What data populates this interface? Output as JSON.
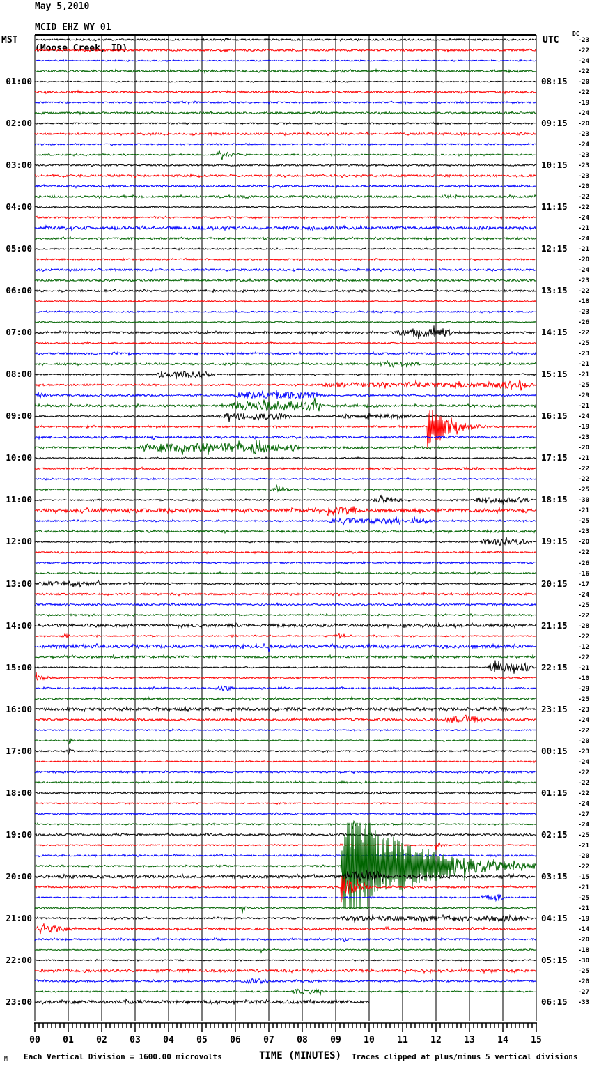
{
  "header": {
    "date": "May 5,2010",
    "station": "MCID EHZ WY 01",
    "location": "(Moose Creek, ID)"
  },
  "axes": {
    "left_label": "MST",
    "right_label": "UTC",
    "dc_label": "DC",
    "x_title": "TIME (MINUTES)",
    "x_tick_labels": [
      "00",
      "01",
      "02",
      "03",
      "04",
      "05",
      "06",
      "07",
      "08",
      "09",
      "10",
      "11",
      "12",
      "13",
      "14",
      "15"
    ]
  },
  "footer": {
    "corner_mark": "M",
    "scale_note": "Each Vertical Division = 1600.00 microvolts",
    "clip_note": "Traces clipped at plus/minus 5 vertical divisions"
  },
  "chart_data": {
    "type": "line",
    "subtype": "helicorder-seismogram",
    "minutes_per_line": 15,
    "x_range": [
      0,
      15
    ],
    "x_minor_ticks_per_minute": 8,
    "num_traces": 93,
    "last_trace_end_minute": 10,
    "grid": true,
    "grid_color": "#7b7b7b",
    "trace_color_cycle": [
      "#000000",
      "#ff0000",
      "#0000ff",
      "#006400"
    ],
    "clip_divisions": 5,
    "mst_hour_labels": [
      "01:00",
      "02:00",
      "03:00",
      "04:00",
      "05:00",
      "06:00",
      "07:00",
      "08:00",
      "09:00",
      "10:00",
      "11:00",
      "12:00",
      "13:00",
      "14:00",
      "15:00",
      "16:00",
      "17:00",
      "18:00",
      "19:00",
      "20:00",
      "21:00",
      "22:00",
      "23:00"
    ],
    "utc_hour_labels": [
      "08:15",
      "09:15",
      "10:15",
      "11:15",
      "12:15",
      "13:15",
      "14:15",
      "15:15",
      "16:15",
      "17:15",
      "18:15",
      "19:15",
      "20:15",
      "21:15",
      "22:15",
      "23:15",
      "00:15",
      "01:15",
      "02:15",
      "03:15",
      "04:15",
      "05:15",
      "06:15"
    ],
    "dc_offsets": [
      -23,
      -22,
      -24,
      -22,
      -20,
      -22,
      -19,
      -24,
      -20,
      -23,
      -24,
      -23,
      -23,
      -23,
      -20,
      -22,
      -22,
      -24,
      -21,
      -24,
      -21,
      -20,
      -24,
      -23,
      -22,
      -18,
      -23,
      -26,
      -22,
      -25,
      -23,
      -21,
      -21,
      -25,
      -29,
      -21,
      -24,
      -19,
      -23,
      -20,
      -21,
      -22,
      -22,
      -25,
      -30,
      -21,
      -25,
      -23,
      -20,
      -22,
      -26,
      -16,
      -17,
      -24,
      -25,
      -22,
      -28,
      -22,
      -12,
      -22,
      -21,
      -10,
      -29,
      -25,
      -23,
      -24,
      -22,
      -20,
      -23,
      -24,
      -22,
      -22,
      -22,
      -24,
      -27,
      -24,
      -25,
      -21,
      -20,
      -22,
      -15,
      -21,
      -25,
      -21,
      -19,
      -14,
      -20,
      -18,
      -30,
      -25,
      -20,
      -27,
      -33
    ],
    "events": [
      {
        "trace": 1,
        "start": 14.5,
        "end": 14.8,
        "amp": 3,
        "kind": "burst"
      },
      {
        "trace": 3,
        "start": 12.3,
        "end": 12.55,
        "amp": 2.5,
        "kind": "burst"
      },
      {
        "trace": 9,
        "start": 14.4,
        "end": 14.75,
        "amp": 4,
        "kind": "burst"
      },
      {
        "trace": 11,
        "start": 5.45,
        "end": 7.3,
        "amp": 5,
        "kind": "quake"
      },
      {
        "trace": 18,
        "start": 0,
        "end": 15,
        "amp": 2.1,
        "kind": "burst"
      },
      {
        "trace": 28,
        "start": 8.3,
        "end": 8.65,
        "amp": 6,
        "kind": "quake"
      },
      {
        "trace": 28,
        "start": 10.75,
        "end": 12.6,
        "amp": 6,
        "kind": "burst"
      },
      {
        "trace": 31,
        "start": 10.1,
        "end": 11.7,
        "amp": 3,
        "kind": "burst"
      },
      {
        "trace": 32,
        "start": 3.6,
        "end": 5.4,
        "amp": 4,
        "kind": "burst"
      },
      {
        "trace": 33,
        "start": 8.4,
        "end": 15,
        "amp": 3.5,
        "kind": "burst"
      },
      {
        "trace": 33,
        "start": 13.4,
        "end": 15,
        "amp": 5,
        "kind": "burst"
      },
      {
        "trace": 34,
        "start": 0.02,
        "end": 0.95,
        "amp": 7,
        "kind": "quake"
      },
      {
        "trace": 34,
        "start": 5.8,
        "end": 8.7,
        "amp": 4.5,
        "kind": "burst"
      },
      {
        "trace": 35,
        "start": 5.8,
        "end": 8.7,
        "amp": 7,
        "kind": "burst"
      },
      {
        "trace": 36,
        "start": 5.5,
        "end": 7.8,
        "amp": 5,
        "kind": "burst"
      },
      {
        "trace": 36,
        "start": 9.0,
        "end": 11.5,
        "amp": 3,
        "kind": "burst"
      },
      {
        "trace": 37,
        "start": 11.75,
        "end": 13.6,
        "amp": 34,
        "kind": "quake"
      },
      {
        "trace": 38,
        "start": 3.5,
        "end": 3.65,
        "amp": 5,
        "kind": "quake"
      },
      {
        "trace": 39,
        "start": 3.1,
        "end": 8.0,
        "amp": 6,
        "kind": "burst"
      },
      {
        "trace": 39,
        "start": 6.6,
        "end": 6.95,
        "amp": 13,
        "kind": "quake"
      },
      {
        "trace": 43,
        "start": 7.1,
        "end": 8.6,
        "amp": 5,
        "kind": "quake"
      },
      {
        "trace": 44,
        "start": 10.0,
        "end": 11.1,
        "amp": 4,
        "kind": "burst"
      },
      {
        "trace": 44,
        "start": 13.1,
        "end": 15,
        "amp": 4,
        "kind": "burst"
      },
      {
        "trace": 45,
        "start": 0,
        "end": 15,
        "amp": 2.3,
        "kind": "burst"
      },
      {
        "trace": 45,
        "start": 8.75,
        "end": 11.3,
        "amp": 10,
        "kind": "quake"
      },
      {
        "trace": 46,
        "start": 8.7,
        "end": 12.0,
        "amp": 3.5,
        "kind": "burst"
      },
      {
        "trace": 48,
        "start": 13.3,
        "end": 15,
        "amp": 4,
        "kind": "burst"
      },
      {
        "trace": 52,
        "start": 0.05,
        "end": 2.2,
        "amp": 3,
        "kind": "burst"
      },
      {
        "trace": 52,
        "start": 9.75,
        "end": 9.95,
        "amp": 3,
        "kind": "quake"
      },
      {
        "trace": 54,
        "start": 4.1,
        "end": 4.3,
        "amp": 5,
        "kind": "quake"
      },
      {
        "trace": 56,
        "start": 0,
        "end": 15,
        "amp": 2,
        "kind": "burst"
      },
      {
        "trace": 57,
        "start": 0.75,
        "end": 1.15,
        "amp": 4,
        "kind": "burst"
      },
      {
        "trace": 57,
        "start": 5.8,
        "end": 6.2,
        "amp": 3,
        "kind": "burst"
      },
      {
        "trace": 57,
        "start": 8.9,
        "end": 9.4,
        "amp": 3.5,
        "kind": "burst"
      },
      {
        "trace": 58,
        "start": 0,
        "end": 15,
        "amp": 2.2,
        "kind": "burst"
      },
      {
        "trace": 58,
        "start": 7.0,
        "end": 7.25,
        "amp": 8,
        "kind": "quake"
      },
      {
        "trace": 59,
        "start": 2.35,
        "end": 2.55,
        "amp": 6,
        "kind": "quake"
      },
      {
        "trace": 59,
        "start": 8.8,
        "end": 9.1,
        "amp": 3,
        "kind": "burst"
      },
      {
        "trace": 60,
        "start": 13.5,
        "end": 15,
        "amp": 6,
        "kind": "burst"
      },
      {
        "trace": 61,
        "start": 0.02,
        "end": 1.6,
        "amp": 5,
        "kind": "quake"
      },
      {
        "trace": 61,
        "start": 2.1,
        "end": 2.4,
        "amp": 3,
        "kind": "burst"
      },
      {
        "trace": 62,
        "start": 5.4,
        "end": 6.1,
        "amp": 3.5,
        "kind": "burst"
      },
      {
        "trace": 64,
        "start": 0,
        "end": 15,
        "amp": 2,
        "kind": "burst"
      },
      {
        "trace": 65,
        "start": 6.0,
        "end": 6.5,
        "amp": 3,
        "kind": "burst"
      },
      {
        "trace": 65,
        "start": 12.2,
        "end": 13.6,
        "amp": 4.5,
        "kind": "burst"
      },
      {
        "trace": 67,
        "start": 1.0,
        "end": 1.15,
        "amp": 8,
        "kind": "quake"
      },
      {
        "trace": 68,
        "start": 0.8,
        "end": 1.3,
        "amp": 3,
        "kind": "burst"
      },
      {
        "trace": 75,
        "start": 9.5,
        "end": 9.65,
        "amp": 10,
        "kind": "quake"
      },
      {
        "trace": 77,
        "start": 12.0,
        "end": 12.45,
        "amp": 8,
        "kind": "quake"
      },
      {
        "trace": 79,
        "start": 9.15,
        "end": 15,
        "amp": 95,
        "kind": "mainshock"
      },
      {
        "trace": 80,
        "start": 0,
        "end": 15,
        "amp": 2,
        "kind": "burst"
      },
      {
        "trace": 80,
        "start": 9.2,
        "end": 10.6,
        "amp": 7,
        "kind": "burst"
      },
      {
        "trace": 81,
        "start": 9.15,
        "end": 10.4,
        "amp": 22,
        "kind": "quake"
      },
      {
        "trace": 82,
        "start": 13.3,
        "end": 14.2,
        "amp": 4,
        "kind": "burst"
      },
      {
        "trace": 83,
        "start": 6.2,
        "end": 6.35,
        "amp": 9,
        "kind": "quake"
      },
      {
        "trace": 84,
        "start": 9.0,
        "end": 15,
        "amp": 3,
        "kind": "burst"
      },
      {
        "trace": 84,
        "start": 13.3,
        "end": 14.8,
        "amp": 4.5,
        "kind": "burst"
      },
      {
        "trace": 85,
        "start": 0.05,
        "end": 2.4,
        "amp": 10,
        "kind": "quake"
      },
      {
        "trace": 86,
        "start": 9.25,
        "end": 9.45,
        "amp": 6,
        "kind": "quake"
      },
      {
        "trace": 87,
        "start": 6.75,
        "end": 6.95,
        "amp": 5,
        "kind": "quake"
      },
      {
        "trace": 87,
        "start": 7.55,
        "end": 7.75,
        "amp": 3,
        "kind": "burst"
      },
      {
        "trace": 89,
        "start": 0,
        "end": 15,
        "amp": 1.8,
        "kind": "burst"
      },
      {
        "trace": 89,
        "start": 1.3,
        "end": 1.8,
        "amp": 3,
        "kind": "burst"
      },
      {
        "trace": 89,
        "start": 5.4,
        "end": 5.9,
        "amp": 3,
        "kind": "burst"
      },
      {
        "trace": 90,
        "start": 6.1,
        "end": 7.1,
        "amp": 3.5,
        "kind": "burst"
      },
      {
        "trace": 91,
        "start": 7.6,
        "end": 8.8,
        "amp": 4,
        "kind": "burst"
      },
      {
        "trace": 92,
        "start": 0,
        "end": 10,
        "amp": 2.2,
        "kind": "burst"
      }
    ]
  }
}
